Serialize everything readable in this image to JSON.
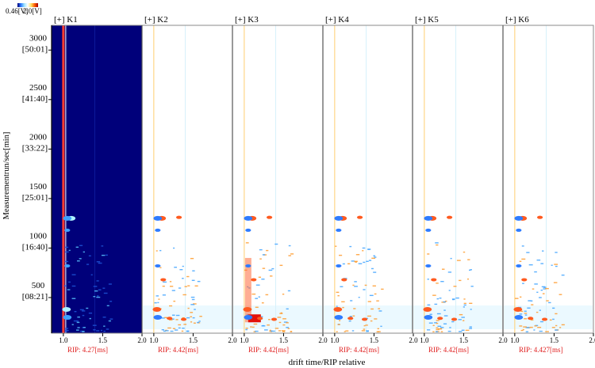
{
  "chart_data": {
    "type": "heatmap",
    "title": "",
    "xlabel": "drift time/RIP relative",
    "ylabel": "Measurementrun/sec[min]",
    "xlim": [
      0.85,
      2.0
    ],
    "ylim": [
      140,
      3250
    ],
    "colorbar": {
      "min_label": "0.46[V]",
      "max_label": "2.0[V]",
      "colors": [
        "#00007a",
        "#2f7cff",
        "#9fe6ff",
        "#ffffff",
        "#ffe060",
        "#ff5a00",
        "#a00000"
      ]
    },
    "x_ticks": [
      {
        "value": 1.0,
        "label": "1.0"
      },
      {
        "value": 1.5,
        "label": "1.5"
      },
      {
        "value": 2.0,
        "label": "2.0"
      }
    ],
    "y_ticks": [
      {
        "value": 500,
        "label": "500",
        "sublabel": "[08:21]"
      },
      {
        "value": 1000,
        "label": "1000",
        "sublabel": "[16:40]"
      },
      {
        "value": 1500,
        "label": "1500",
        "sublabel": "[25:01]"
      },
      {
        "value": 2000,
        "label": "2000",
        "sublabel": "[33:22]"
      },
      {
        "value": 2500,
        "label": "2500",
        "sublabel": "[41:40]"
      },
      {
        "value": 3000,
        "label": "3000",
        "sublabel": "[50:01]"
      }
    ],
    "panels": [
      {
        "name": "[+] K1",
        "rip": "RIP: 4.27[ms]",
        "mode": "reference"
      },
      {
        "name": "[+] K2",
        "rip": "RIP: 4.42[ms]",
        "mode": "difference"
      },
      {
        "name": "[+] K3",
        "rip": "RIP: 4.42[ms]",
        "mode": "difference"
      },
      {
        "name": "[+] K4",
        "rip": "RIP: 4.42[ms]",
        "mode": "difference"
      },
      {
        "name": "[+] K5",
        "rip": "RIP: 4.42[ms]",
        "mode": "difference"
      },
      {
        "name": "[+] K6",
        "rip": "RIP: 4.427[ms]",
        "mode": "difference"
      }
    ],
    "spots": [
      {
        "x": 1.1,
        "y": 1300,
        "panels": [
          0,
          1,
          2,
          3,
          4,
          5
        ],
        "sign": "red",
        "size": 3
      },
      {
        "x": 1.05,
        "y": 1300,
        "panels": [
          0,
          1,
          2,
          3,
          4,
          5
        ],
        "sign": "blue",
        "size": 3
      },
      {
        "x": 1.32,
        "y": 1310,
        "panels": [
          1,
          2,
          3,
          4,
          5
        ],
        "sign": "red",
        "size": 2
      },
      {
        "x": 1.05,
        "y": 1180,
        "panels": [
          0,
          1,
          2,
          3,
          4,
          5
        ],
        "sign": "blue",
        "size": 2
      },
      {
        "x": 1.05,
        "y": 820,
        "panels": [
          0,
          1,
          2,
          3,
          4,
          5
        ],
        "sign": "blue",
        "size": 2
      },
      {
        "x": 1.12,
        "y": 680,
        "panels": [
          1,
          2,
          3,
          4,
          5
        ],
        "sign": "red",
        "size": 2
      },
      {
        "x": 1.04,
        "y": 380,
        "panels": [
          0,
          1,
          2,
          3,
          4,
          5
        ],
        "sign": "red",
        "size": 3
      },
      {
        "x": 1.05,
        "y": 300,
        "panels": [
          0,
          1,
          2,
          3,
          4,
          5
        ],
        "sign": "blue",
        "size": 3
      },
      {
        "x": 1.2,
        "y": 290,
        "panels": [
          1,
          2,
          3,
          4,
          5
        ],
        "sign": "red",
        "size": 2
      },
      {
        "x": 1.38,
        "y": 280,
        "panels": [
          1,
          2,
          3,
          4,
          5
        ],
        "sign": "red",
        "size": 2
      }
    ]
  }
}
